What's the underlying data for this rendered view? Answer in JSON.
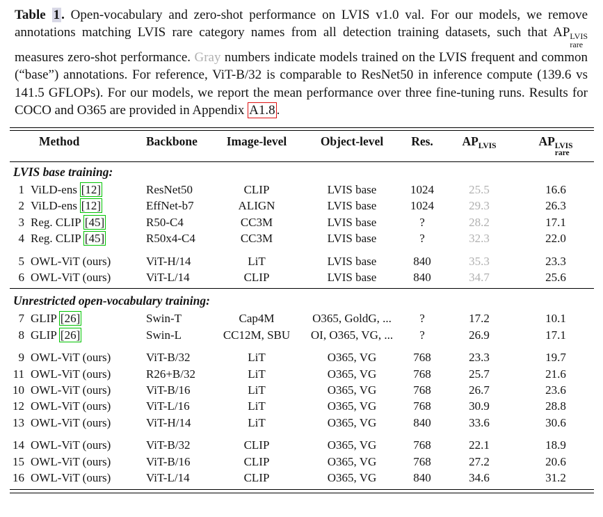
{
  "colors": {
    "citation_box_green": "#00c300",
    "appendix_box_red": "#dd1111",
    "gray_value_text": "#b0b0b0",
    "table_number_highlight": "#d8d8e6"
  },
  "caption": {
    "label": "Table",
    "number": "1",
    "dot": ".",
    "seg1": " Open-vocabulary and zero-shot performance on LVIS v1.0 val. For our models, we remove annotations matching LVIS rare category names from all detection training datasets, such that ",
    "ap_base": "AP",
    "ap_sup": "LVIS",
    "ap_sub": "rare",
    "seg2": " measures zero-shot performance. ",
    "gray_word": "Gray",
    "seg3": " numbers indicate models trained on the LVIS frequent and common (“base”) annotations. For reference, ViT-B/32 is comparable to ResNet50 in inference compute (139.6 vs 141.5 GFLOPs). For our models, we report the mean performance over three fine-tuning runs. Results for COCO and O365 are provided in Appendix ",
    "appendix_ref": "A1.8",
    "seg4": "."
  },
  "table": {
    "headers": {
      "method": "Method",
      "backbone": "Backbone",
      "image_level": "Image-level",
      "object_level": "Object-level",
      "res": "Res.",
      "ap_base": "AP",
      "ap_sup": "LVIS",
      "ap_rare_base": "AP",
      "ap_rare_sup": "LVIS",
      "ap_rare_sub": "rare"
    },
    "sections": [
      {
        "title": "LVIS base training:",
        "rows": [
          {
            "num": "1",
            "method": "ViLD-ens",
            "cite": "[12]",
            "backbone": "ResNet50",
            "image_level": "CLIP",
            "object_level": "LVIS base",
            "res": "1024",
            "ap": "25.5",
            "ap_gray": true,
            "ap_rare": "16.6"
          },
          {
            "num": "2",
            "method": "ViLD-ens",
            "cite": "[12]",
            "backbone": "EffNet-b7",
            "image_level": "ALIGN",
            "object_level": "LVIS base",
            "res": "1024",
            "ap": "29.3",
            "ap_gray": true,
            "ap_rare": "26.3"
          },
          {
            "num": "3",
            "method": "Reg. CLIP",
            "cite": "[45]",
            "backbone": "R50-C4",
            "image_level": "CC3M",
            "object_level": "LVIS base",
            "res": "?",
            "ap": "28.2",
            "ap_gray": true,
            "ap_rare": "17.1"
          },
          {
            "num": "4",
            "method": "Reg. CLIP",
            "cite": "[45]",
            "backbone": "R50x4-C4",
            "image_level": "CC3M",
            "object_level": "LVIS base",
            "res": "?",
            "ap": "32.3",
            "ap_gray": true,
            "ap_rare": "22.0"
          },
          {
            "num": "5",
            "method": "OWL-ViT (ours)",
            "backbone": "ViT-H/14",
            "image_level": "LiT",
            "object_level": "LVIS base",
            "res": "840",
            "ap": "35.3",
            "ap_gray": true,
            "ap_rare": "23.3",
            "gap_before": true
          },
          {
            "num": "6",
            "method": "OWL-ViT (ours)",
            "backbone": "ViT-L/14",
            "image_level": "CLIP",
            "object_level": "LVIS base",
            "res": "840",
            "ap": "34.7",
            "ap_gray": true,
            "ap_rare": "25.6"
          }
        ]
      },
      {
        "title": "Unrestricted open-vocabulary training:",
        "rows": [
          {
            "num": "7",
            "method": "GLIP",
            "cite": "[26]",
            "backbone": "Swin-T",
            "image_level": "Cap4M",
            "object_level": "O365, GoldG, ...",
            "res": "?",
            "ap": "17.2",
            "ap_rare": "10.1"
          },
          {
            "num": "8",
            "method": "GLIP",
            "cite": "[26]",
            "backbone": "Swin-L",
            "image_level": "CC12M, SBU",
            "object_level": "OI, O365, VG, ...",
            "res": "?",
            "ap": "26.9",
            "ap_rare": "17.1"
          },
          {
            "num": "9",
            "method": "OWL-ViT (ours)",
            "backbone": "ViT-B/32",
            "image_level": "LiT",
            "object_level": "O365, VG",
            "res": "768",
            "ap": "23.3",
            "ap_rare": "19.7",
            "gap_before": true
          },
          {
            "num": "11",
            "method": "OWL-ViT (ours)",
            "backbone": "R26+B/32",
            "image_level": "LiT",
            "object_level": "O365, VG",
            "res": "768",
            "ap": "25.7",
            "ap_rare": "21.6"
          },
          {
            "num": "10",
            "method": "OWL-ViT (ours)",
            "backbone": "ViT-B/16",
            "image_level": "LiT",
            "object_level": "O365, VG",
            "res": "768",
            "ap": "26.7",
            "ap_rare": "23.6"
          },
          {
            "num": "12",
            "method": "OWL-ViT (ours)",
            "backbone": "ViT-L/16",
            "image_level": "LiT",
            "object_level": "O365, VG",
            "res": "768",
            "ap": "30.9",
            "ap_rare": "28.8"
          },
          {
            "num": "13",
            "method": "OWL-ViT (ours)",
            "backbone": "ViT-H/14",
            "image_level": "LiT",
            "object_level": "O365, VG",
            "res": "840",
            "ap": "33.6",
            "ap_rare": "30.6"
          },
          {
            "num": "14",
            "method": "OWL-ViT (ours)",
            "backbone": "ViT-B/32",
            "image_level": "CLIP",
            "object_level": "O365, VG",
            "res": "768",
            "ap": "22.1",
            "ap_rare": "18.9",
            "gap_before": true
          },
          {
            "num": "15",
            "method": "OWL-ViT (ours)",
            "backbone": "ViT-B/16",
            "image_level": "CLIP",
            "object_level": "O365, VG",
            "res": "768",
            "ap": "27.2",
            "ap_rare": "20.6"
          },
          {
            "num": "16",
            "method": "OWL-ViT (ours)",
            "backbone": "ViT-L/14",
            "image_level": "CLIP",
            "object_level": "O365, VG",
            "res": "840",
            "ap": "34.6",
            "ap_rare": "31.2"
          }
        ]
      }
    ]
  }
}
